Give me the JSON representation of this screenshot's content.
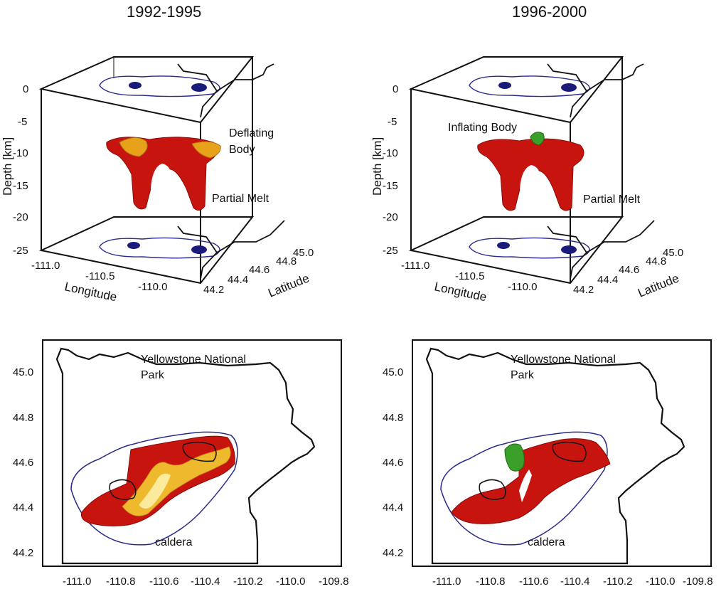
{
  "panels_3d": [
    {
      "title": "1992-1995",
      "depth_axis_label": "Depth [km]",
      "depth_ticks": [
        "0",
        "-5",
        "-10",
        "-15",
        "-20",
        "-25"
      ],
      "longitude_label": "Longitude",
      "longitude_ticks": [
        "-111.0",
        "-110.5",
        "-110.0"
      ],
      "latitude_label": "Latitude",
      "latitude_ticks": [
        "44.2",
        "44.4",
        "44.6",
        "44.8",
        "45.0"
      ],
      "body_label_line1": "Deflating",
      "body_label_line2": "Body",
      "melt_label": "Partial Melt",
      "body_color": "#e8a21a"
    },
    {
      "title": "1996-2000",
      "depth_axis_label": "Depth [km]",
      "depth_ticks": [
        "0",
        "-5",
        "-10",
        "-15",
        "-20",
        "-25"
      ],
      "longitude_label": "Longitude",
      "longitude_ticks": [
        "-111.0",
        "-110.5",
        "-110.0"
      ],
      "latitude_label": "Latitude",
      "latitude_ticks": [
        "44.2",
        "44.4",
        "44.6",
        "44.8",
        "45.0"
      ],
      "body_label_line1": "Inflating Body",
      "body_label_line2": "",
      "melt_label": "Partial Melt",
      "body_color": "#3aa02a"
    }
  ],
  "panels_map": [
    {
      "park_label_line1": "Yellowstone National",
      "park_label_line2": "Park",
      "caldera_label": "caldera",
      "lat_ticks": [
        "45.0",
        "44.8",
        "44.6",
        "44.4",
        "44.2"
      ],
      "lon_ticks": [
        "-111.0",
        "-110.8",
        "-110.6",
        "-110.4",
        "-110.2",
        "-110.0",
        "-109.8"
      ],
      "body_color": "#f2c230"
    },
    {
      "park_label_line1": "Yellowstone National",
      "park_label_line2": "Park",
      "caldera_label": "caldera",
      "lat_ticks": [
        "45.0",
        "44.8",
        "44.6",
        "44.4",
        "44.2"
      ],
      "lon_ticks": [
        "-111.0",
        "-110.8",
        "-110.6",
        "-110.4",
        "-110.2",
        "-110.0",
        "-109.8"
      ],
      "body_color": "#3aa02a"
    }
  ],
  "colors": {
    "melt": "#c8140f",
    "caldera_outline": "#2a2a8a",
    "resurgent_dome": "#1a1a7a",
    "park_border": "#111111"
  }
}
